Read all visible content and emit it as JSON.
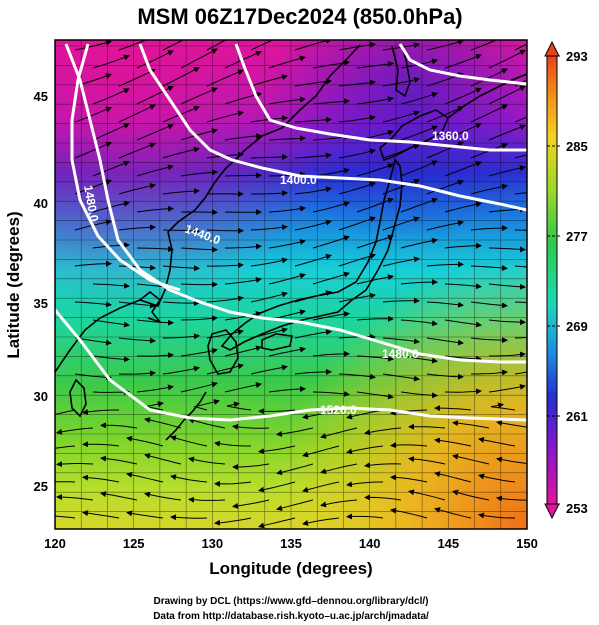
{
  "title": "MSM 06Z17Dec2024 (850.0hPa)",
  "xlabel": "Longitude (degrees)",
  "ylabel": "Latitude  (degrees)",
  "x_ticks": [
    "120",
    "125",
    "130",
    "135",
    "140",
    "145",
    "150"
  ],
  "y_ticks": [
    "25",
    "30",
    "35",
    "40",
    "45"
  ],
  "colorbar": {
    "ticks": [
      "293",
      "285",
      "277",
      "269",
      "261",
      "253"
    ],
    "min": 253,
    "max": 293
  },
  "contours": [
    {
      "label": "1360.0"
    },
    {
      "label": "1400.0"
    },
    {
      "label": "1440.0"
    },
    {
      "label": "1480.0"
    },
    {
      "label": "1480.0"
    },
    {
      "label": "1520.0"
    }
  ],
  "credits": {
    "line1": "Drawing by DCL (https://www.gfd–dennou.org/library/dcl/)",
    "line2": "Data from http://database.rish.kyoto–u.ac.jp/arch/jmadata/"
  },
  "colors": {
    "magenta": "#e0119a",
    "violet": "#8a16c8",
    "blue": "#2533d6",
    "cyan": "#17d8cf",
    "green": "#33c94f",
    "lime": "#8cd81f",
    "yellow": "#f2d321",
    "orange": "#ef7a17"
  }
}
